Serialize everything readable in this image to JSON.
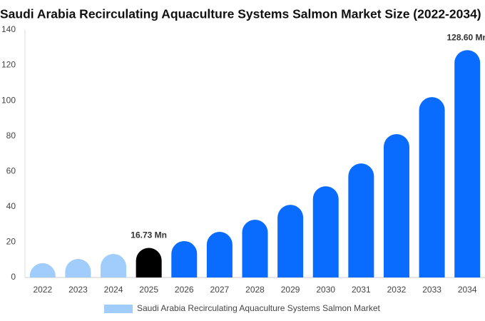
{
  "chart_data": {
    "type": "bar",
    "title": "Saudi Arabia Recirculating Aquaculture Systems Salmon Market Size (2022-2034)",
    "categories": [
      "2022",
      "2023",
      "2024",
      "2025",
      "2026",
      "2027",
      "2028",
      "2029",
      "2030",
      "2031",
      "2032",
      "2033",
      "2034"
    ],
    "series": [
      {
        "name": "Saudi Arabia Recirculating Aquaculture Systems Salmon Market",
        "color": "#a0cdfb",
        "values": [
          8.1,
          10.5,
          13.3,
          16.73,
          20.6,
          25.8,
          32.7,
          41.1,
          51.6,
          64.5,
          81.1,
          102,
          128.6
        ],
        "value_labels": [
          null,
          null,
          null,
          "16.73 Mn",
          null,
          null,
          null,
          null,
          null,
          null,
          null,
          null,
          "128.60 Mn"
        ],
        "colors": [
          "#a0cdfb",
          "#a0cdfb",
          "#a0cdfb",
          "#000000",
          "#0a6cff",
          "#0a6cff",
          "#0a6cff",
          "#0a6cff",
          "#0a6cff",
          "#0a6cff",
          "#0a6cff",
          "#0a6cff",
          "#0a6cff"
        ]
      }
    ],
    "ylim": [
      0,
      140
    ],
    "yticks": [
      0,
      20,
      40,
      60,
      80,
      100,
      120,
      140
    ],
    "grid": false
  }
}
